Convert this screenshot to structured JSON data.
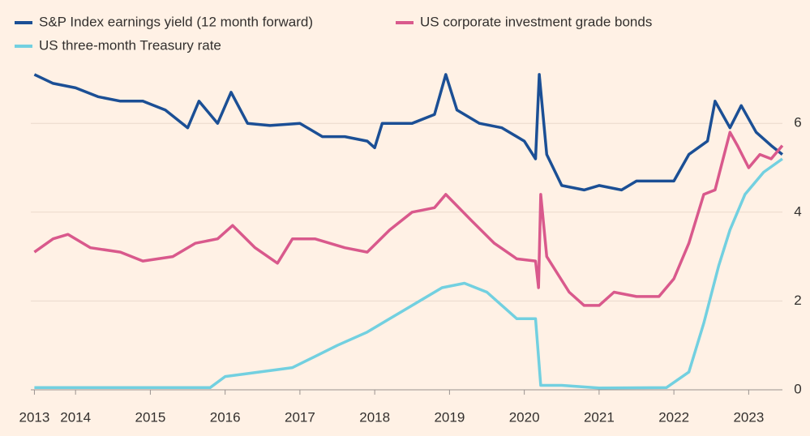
{
  "chart_data": {
    "type": "line",
    "xlim": [
      2012.99,
      2023.5
    ],
    "xticks": [
      {
        "value": 2013.45,
        "label": "2013"
      },
      2014,
      2015,
      2016,
      2017,
      2018,
      2019,
      2020,
      2021,
      2022,
      2023
    ],
    "ylim": [
      -0.1,
      7.5
    ],
    "yticks": [
      0,
      2,
      4,
      6
    ],
    "grid": true,
    "series": [
      {
        "name": "S&P Index earnings yield (12 month forward)",
        "color": "#1b4f95",
        "x": [
          2013.45,
          2013.7,
          2014.0,
          2014.3,
          2014.6,
          2014.9,
          2015.2,
          2015.5,
          2015.65,
          2015.9,
          2016.08,
          2016.3,
          2016.6,
          2017.0,
          2017.3,
          2017.6,
          2017.9,
          2018.0,
          2018.1,
          2018.5,
          2018.8,
          2018.95,
          2019.1,
          2019.4,
          2019.7,
          2020.0,
          2020.15,
          2020.2,
          2020.3,
          2020.5,
          2020.8,
          2021.0,
          2021.3,
          2021.5,
          2021.8,
          2022.0,
          2022.2,
          2022.45,
          2022.55,
          2022.75,
          2022.9,
          2023.1,
          2023.3,
          2023.45
        ],
        "values": [
          7.1,
          6.9,
          6.8,
          6.6,
          6.5,
          6.5,
          6.3,
          5.9,
          6.5,
          6.0,
          6.7,
          6.0,
          5.95,
          6.0,
          5.7,
          5.7,
          5.6,
          5.45,
          6.0,
          6.0,
          6.2,
          7.1,
          6.3,
          6.0,
          5.9,
          5.6,
          5.2,
          7.1,
          5.3,
          4.6,
          4.5,
          4.6,
          4.5,
          4.7,
          4.7,
          4.7,
          5.3,
          5.6,
          6.5,
          5.9,
          6.4,
          5.8,
          5.5,
          5.3
        ]
      },
      {
        "name": "US corporate investment grade bonds",
        "color": "#d9598c",
        "x": [
          2013.45,
          2013.7,
          2013.9,
          2014.2,
          2014.6,
          2014.9,
          2015.3,
          2015.6,
          2015.9,
          2016.1,
          2016.4,
          2016.7,
          2016.9,
          2017.2,
          2017.6,
          2017.9,
          2018.2,
          2018.5,
          2018.8,
          2018.95,
          2019.3,
          2019.6,
          2019.9,
          2020.15,
          2020.19,
          2020.22,
          2020.3,
          2020.6,
          2020.8,
          2021.0,
          2021.2,
          2021.5,
          2021.8,
          2022.0,
          2022.2,
          2022.4,
          2022.55,
          2022.75,
          2022.85,
          2023.0,
          2023.15,
          2023.3,
          2023.45
        ],
        "values": [
          3.1,
          3.4,
          3.5,
          3.2,
          3.1,
          2.9,
          3.0,
          3.3,
          3.4,
          3.7,
          3.2,
          2.85,
          3.4,
          3.4,
          3.2,
          3.1,
          3.6,
          4.0,
          4.1,
          4.4,
          3.8,
          3.3,
          2.95,
          2.9,
          2.3,
          4.4,
          3.0,
          2.2,
          1.9,
          1.9,
          2.2,
          2.1,
          2.1,
          2.5,
          3.3,
          4.4,
          4.5,
          5.8,
          5.5,
          5.0,
          5.3,
          5.2,
          5.5
        ]
      },
      {
        "name": "US three-month Treasury rate",
        "color": "#72d0e0",
        "x": [
          2013.45,
          2015.8,
          2016.0,
          2016.9,
          2017.2,
          2017.5,
          2017.9,
          2018.2,
          2018.5,
          2018.9,
          2019.2,
          2019.5,
          2019.7,
          2019.9,
          2020.15,
          2020.22,
          2020.5,
          2021.0,
          2021.9,
          2022.2,
          2022.4,
          2022.6,
          2022.75,
          2022.95,
          2023.2,
          2023.45
        ],
        "values": [
          0.05,
          0.05,
          0.3,
          0.5,
          0.75,
          1.0,
          1.3,
          1.6,
          1.9,
          2.3,
          2.4,
          2.2,
          1.9,
          1.6,
          1.6,
          0.1,
          0.1,
          0.04,
          0.05,
          0.4,
          1.5,
          2.8,
          3.6,
          4.4,
          4.9,
          5.2
        ]
      }
    ]
  }
}
